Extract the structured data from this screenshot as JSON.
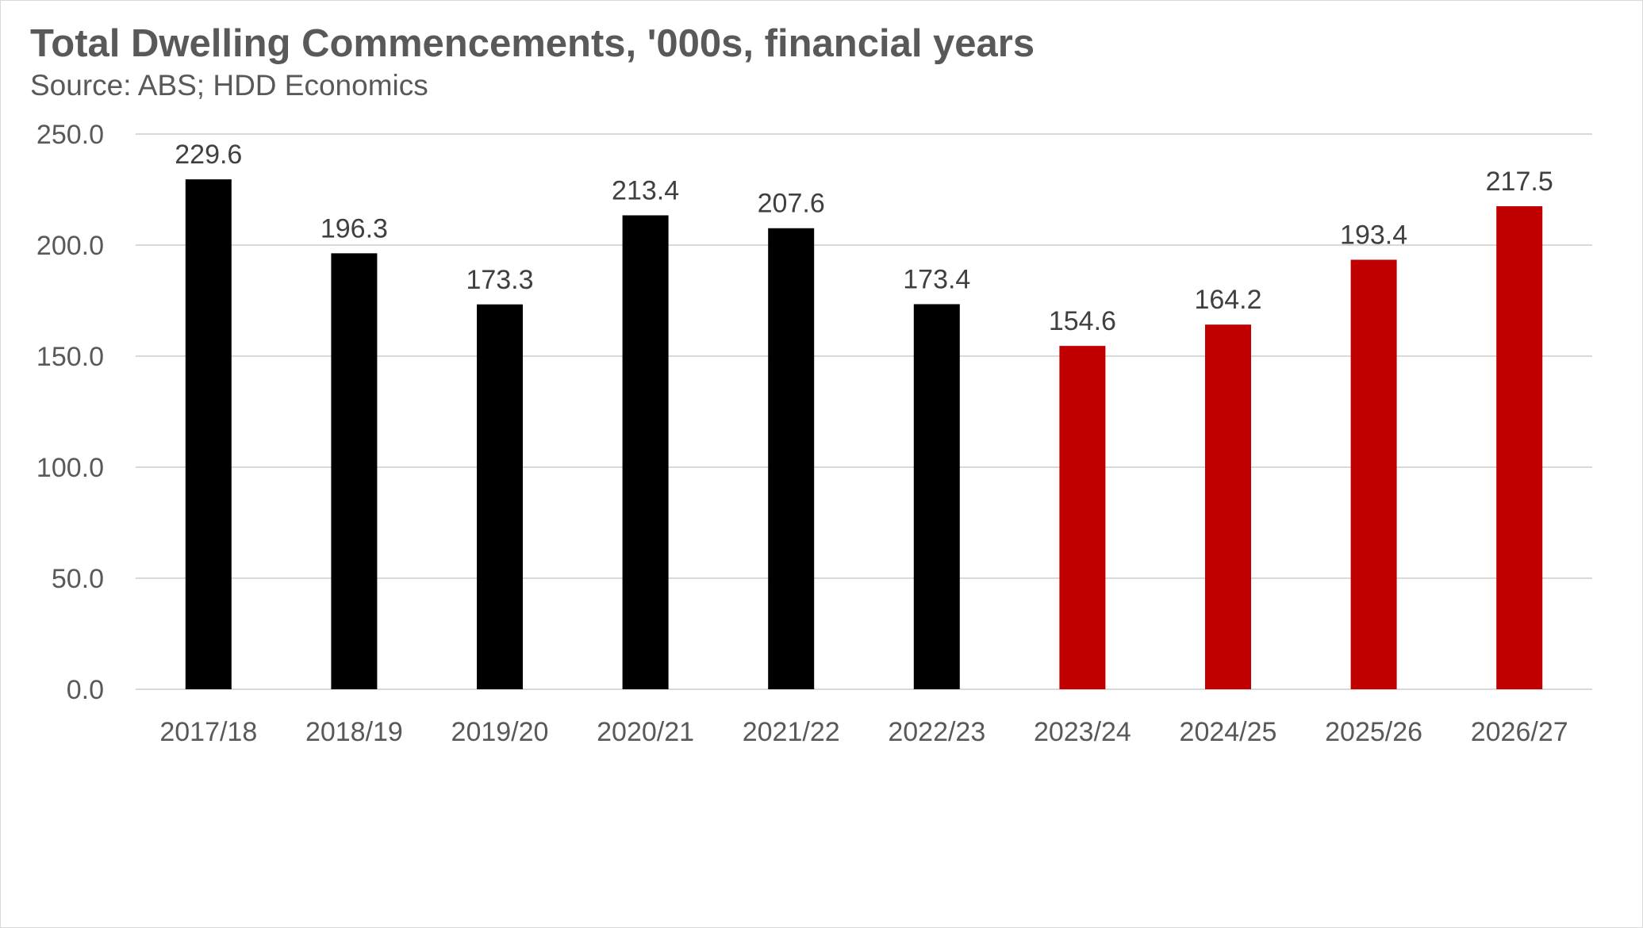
{
  "chart_data": {
    "type": "bar",
    "title": "Total Dwelling Commencements, '000s, financial years",
    "subtitle": "Source: ABS; HDD Economics",
    "categories": [
      "2017/18",
      "2018/19",
      "2019/20",
      "2020/21",
      "2021/22",
      "2022/23",
      "2023/24",
      "2024/25",
      "2025/26",
      "2026/27"
    ],
    "values": [
      229.6,
      196.3,
      173.3,
      213.4,
      207.6,
      173.4,
      154.6,
      164.2,
      193.4,
      217.5
    ],
    "data_labels": [
      "229.6",
      "196.3",
      "173.3",
      "213.4",
      "207.6",
      "173.4",
      "154.6",
      "164.2",
      "193.4",
      "217.5"
    ],
    "bar_colors": [
      "#000000",
      "#000000",
      "#000000",
      "#000000",
      "#000000",
      "#000000",
      "#c00000",
      "#c00000",
      "#c00000",
      "#c00000"
    ],
    "ylim": [
      0,
      250
    ],
    "yticks": [
      0,
      50,
      100,
      150,
      200,
      250
    ],
    "ytick_labels": [
      "0.0",
      "50.0",
      "100.0",
      "150.0",
      "200.0",
      "250.0"
    ],
    "grid": true,
    "legend": "none",
    "colors": {
      "actual": "#000000",
      "forecast": "#c00000",
      "text": "#595959",
      "gridline": "#d9d9d9"
    }
  }
}
